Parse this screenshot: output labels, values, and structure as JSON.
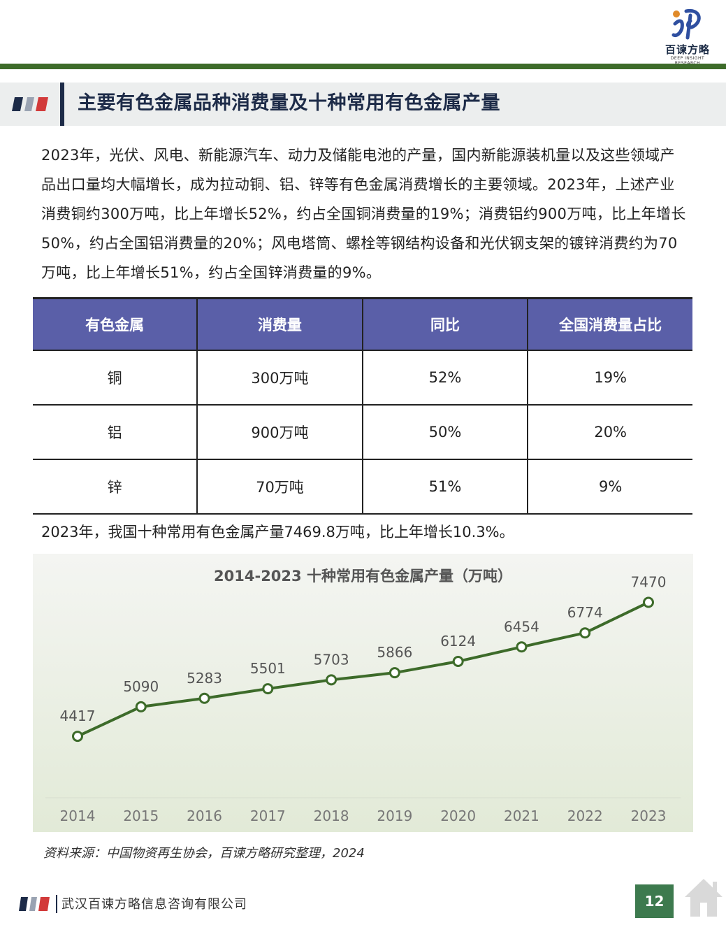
{
  "header": {
    "brand": "百谏方略",
    "brand_sub": "DEEP INSIGHT RESEARCH"
  },
  "title": "主要有色金属品种消费量及十种常用有色金属产量",
  "paragraph": "2023年，光伏、风电、新能源汽车、动力及储能电池的产量，国内新能源装机量以及这些领域产品出口量均大幅增长，成为拉动铜、铝、锌等有色金属消费增长的主要领域。2023年，上述产业消费铜约300万吨，比上年增长52%，约占全国铜消费量的19%；消费铝约900万吨，比上年增长50%，约占全国铝消费量的20%；风电塔筒、螺栓等钢结构设备和光伏钢支架的镀锌消费约为70万吨，比上年增长51%，约占全国锌消费量的9%。",
  "table": {
    "headers": [
      "有色金属",
      "消费量",
      "同比",
      "全国消费量占比"
    ],
    "rows": [
      [
        "铜",
        "300万吨",
        "52%",
        "19%"
      ],
      [
        "铝",
        "900万吨",
        "50%",
        "20%"
      ],
      [
        "锌",
        "70万吨",
        "51%",
        "9%"
      ]
    ]
  },
  "paragraph2": "2023年，我国十种常用有色金属产量7469.8万吨，比上年增长10.3%。",
  "chart_data": {
    "type": "line",
    "title": "2014-2023 十种常用有色金属产量（万吨）",
    "x": [
      "2014",
      "2015",
      "2016",
      "2017",
      "2018",
      "2019",
      "2020",
      "2021",
      "2022",
      "2023"
    ],
    "series": [
      {
        "values": [
          4417,
          5090,
          5283,
          5501,
          5703,
          5866,
          6124,
          6454,
          6774,
          7470
        ]
      }
    ],
    "ylim": [
      3000,
      8100
    ],
    "grid": false,
    "colors": {
      "line": "#3d6b2a",
      "marker_fill": "#ffffff",
      "label": "#555555"
    }
  },
  "source": "资料来源：中国物资再生协会，百谏方略研究整理，2024",
  "footer": {
    "company": "武汉百谏方略信息咨询有限公司",
    "page": "12"
  },
  "colors": {
    "accent_green": "#3d6b2a",
    "navy": "#1d2b48",
    "table_header": "#5a5fa8",
    "page_badge": "#3d7a4e"
  }
}
